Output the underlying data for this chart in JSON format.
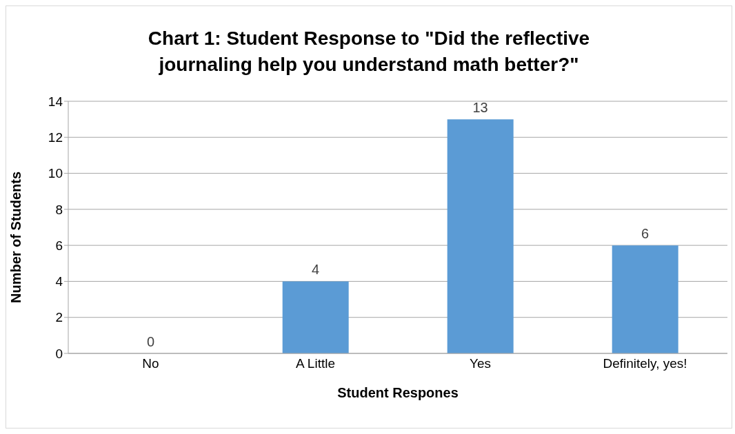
{
  "chart_data": {
    "type": "bar",
    "title": "Chart 1: Student Response to \"Did the reflective journaling help you understand math better?\"",
    "xlabel": "Student Respones",
    "ylabel": "Number of Students",
    "categories": [
      "No",
      "A Little",
      "Yes",
      "Definitely, yes!"
    ],
    "values": [
      0,
      4,
      13,
      6
    ],
    "color": "#5b9bd5",
    "ylim": [
      0,
      14
    ],
    "yticks": [
      0,
      2,
      4,
      6,
      8,
      10,
      12,
      14
    ],
    "grid": "y",
    "data_labels": true
  }
}
